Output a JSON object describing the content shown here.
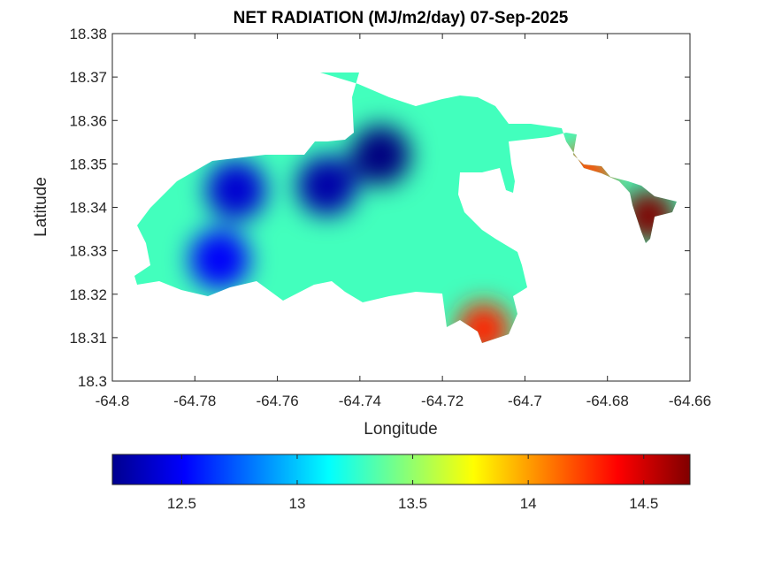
{
  "chart_data": {
    "type": "heatmap",
    "title": "NET RADIATION (MJ/m2/day) 07-Sep-2025",
    "xlabel": "Longitude",
    "ylabel": "Latitude",
    "xlim": [
      -64.8,
      -64.66
    ],
    "ylim": [
      18.3,
      18.38
    ],
    "x_ticks": [
      "-64.8",
      "-64.78",
      "-64.76",
      "-64.74",
      "-64.72",
      "-64.7",
      "-64.68",
      "-64.66"
    ],
    "y_ticks": [
      "18.3",
      "18.31",
      "18.32",
      "18.33",
      "18.34",
      "18.35",
      "18.36",
      "18.37",
      "18.38"
    ],
    "colorbar": {
      "colormap": "jet",
      "range": [
        12.2,
        14.7
      ],
      "ticks": [
        "12.5",
        "13",
        "13.5",
        "14",
        "14.5"
      ]
    },
    "approx_field": {
      "description_units": "lon, lat, value (MJ/m2/day)",
      "low_centers": [
        [
          -64.735,
          18.352,
          12.2
        ],
        [
          -64.748,
          18.345,
          12.3
        ],
        [
          -64.77,
          18.344,
          12.4
        ],
        [
          -64.774,
          18.328,
          12.5
        ]
      ],
      "high_centers": [
        [
          -64.67,
          18.338,
          14.7
        ],
        [
          -64.71,
          18.312,
          14.3
        ],
        [
          -64.685,
          18.348,
          14.2
        ]
      ]
    }
  }
}
